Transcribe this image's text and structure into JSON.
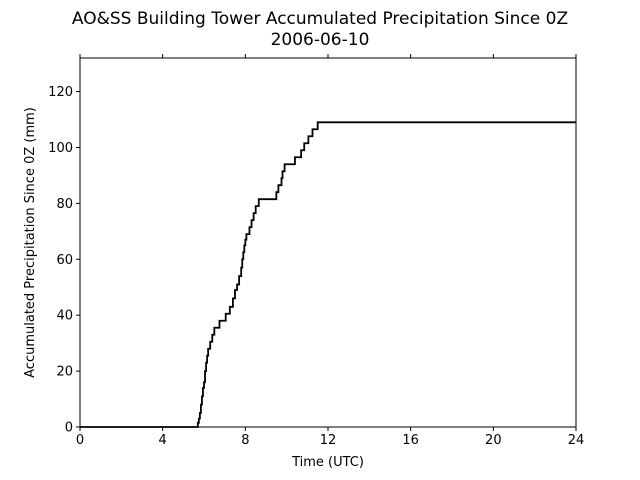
{
  "chart_data": {
    "type": "line",
    "title": "AO&SS Building Tower Accumulated Precipitation Since 0Z",
    "subtitle": "2006-06-10",
    "xlabel": "Time (UTC)",
    "ylabel": "Accumulated Precipitation Since 0Z (mm)",
    "xlim": [
      0,
      24
    ],
    "ylim": [
      0,
      132
    ],
    "xticks": [
      0,
      4,
      8,
      12,
      16,
      20,
      24
    ],
    "yticks": [
      0,
      20,
      40,
      60,
      80,
      100,
      120
    ],
    "grid": false,
    "line_color": "#000000",
    "series": [
      {
        "x": [
          0,
          5.65,
          5.7,
          5.75,
          5.8,
          5.85,
          5.9,
          5.95,
          6.0,
          6.05,
          6.1,
          6.15,
          6.2,
          6.3,
          6.4,
          6.5,
          6.6,
          6.75,
          7.05,
          7.25,
          7.4,
          7.5,
          7.6,
          7.7,
          7.8,
          7.85,
          7.9,
          7.95,
          8.0,
          8.05,
          8.1,
          8.2,
          8.3,
          8.4,
          8.5,
          8.55,
          8.65,
          8.8,
          9.0,
          9.5,
          9.6,
          9.75,
          9.8,
          9.9,
          10.0,
          10.1,
          10.4,
          10.55,
          10.7,
          10.85,
          11.05,
          11.25,
          11.5,
          24
        ],
        "y": [
          0,
          0,
          1.5,
          3,
          5,
          8,
          11,
          14,
          16,
          20,
          23,
          25.5,
          28,
          30.5,
          33,
          35.5,
          35.5,
          38,
          40.5,
          43,
          46,
          49,
          51,
          54,
          57,
          60,
          62.5,
          65,
          67,
          69,
          69,
          71.5,
          74,
          76.5,
          79,
          79,
          81.5,
          81.5,
          81.5,
          84,
          86.5,
          89,
          91.5,
          94,
          94,
          94,
          96.5,
          96.5,
          99,
          101.5,
          104,
          106.5,
          109,
          109
        ]
      }
    ]
  }
}
